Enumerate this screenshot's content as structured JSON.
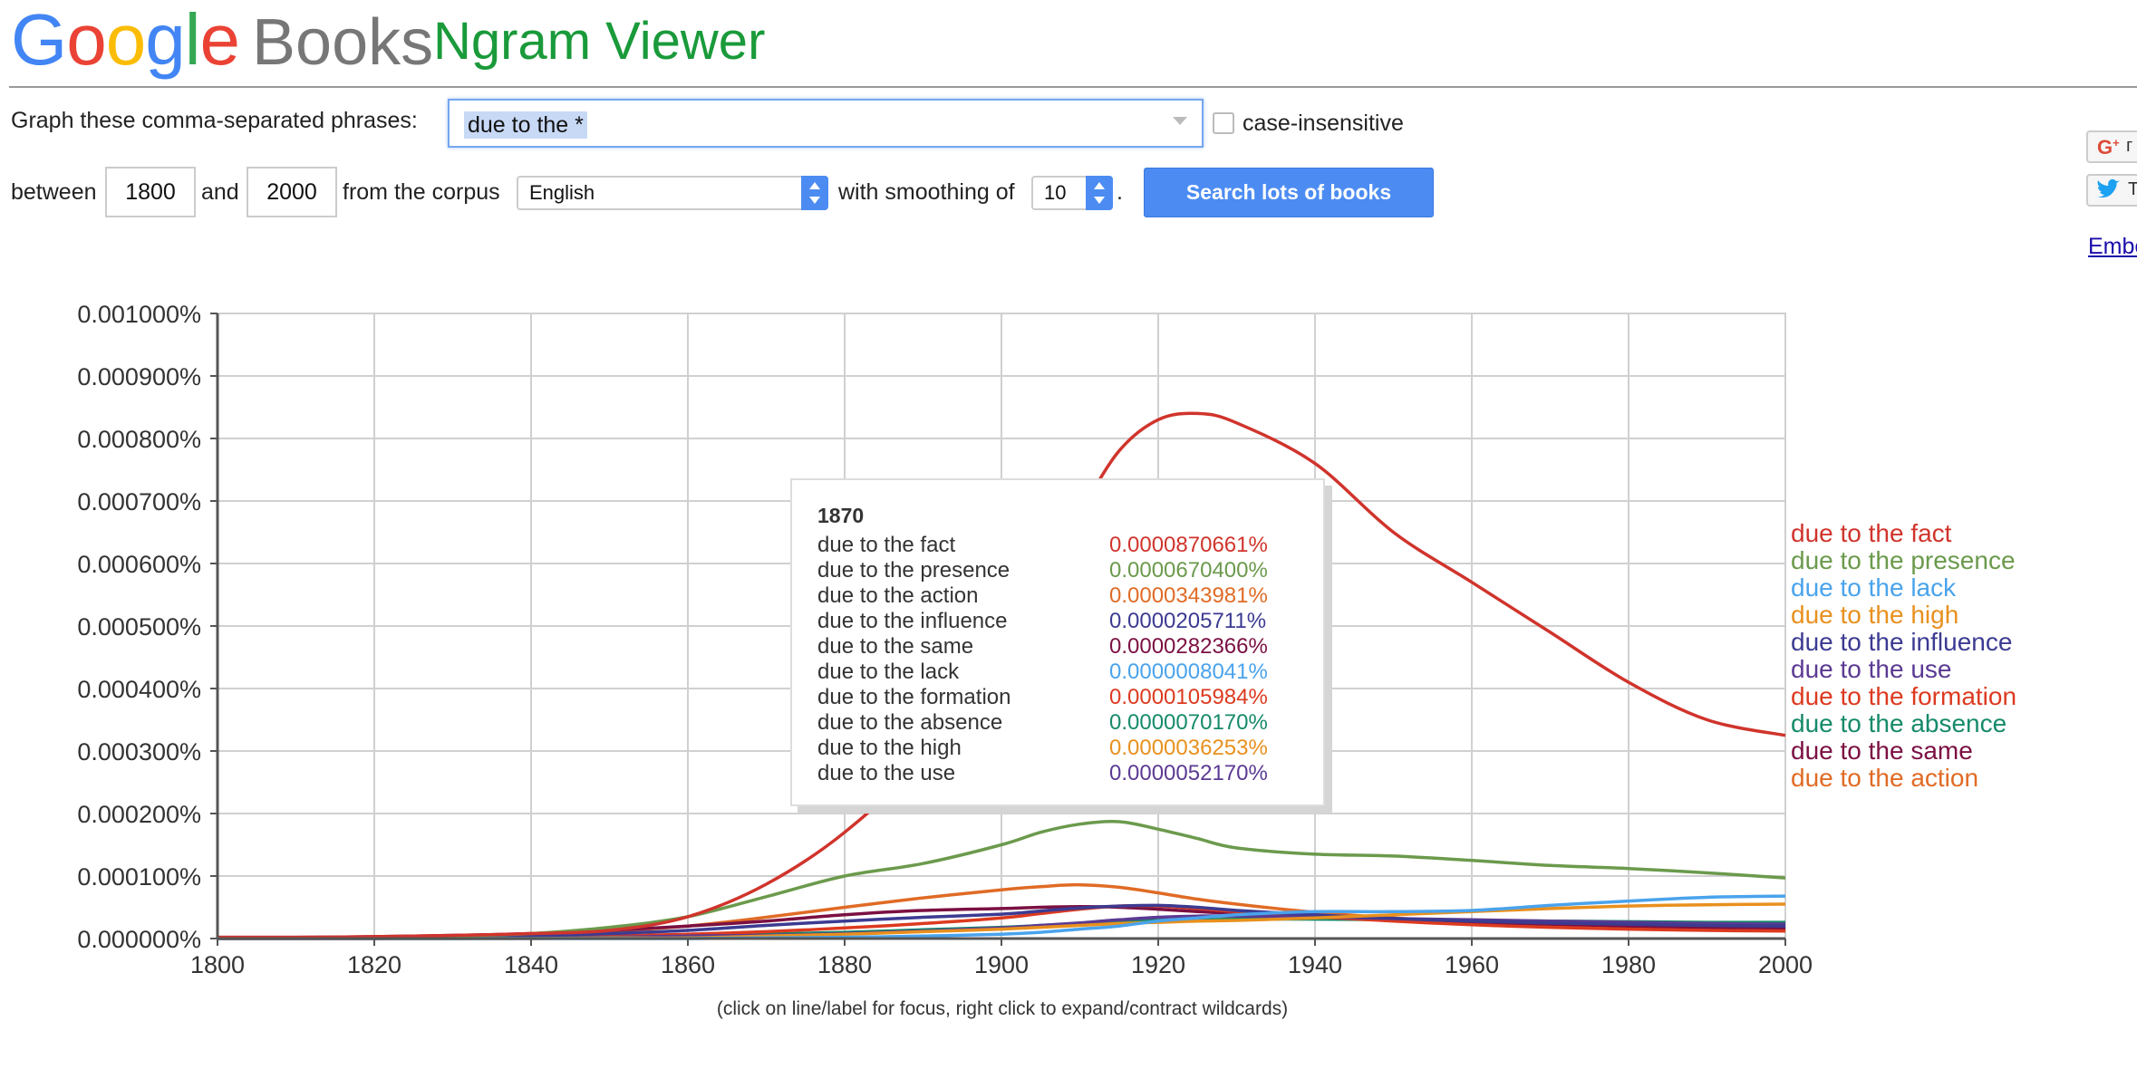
{
  "header": {
    "logo_letters": [
      "G",
      "o",
      "o",
      "g",
      "l",
      "e"
    ],
    "logo_books": "Books",
    "app_title": "Ngram Viewer"
  },
  "controls": {
    "phrase_label": "Graph these comma-separated phrases:",
    "phrase_value": "due to the *",
    "case_label": "case-insensitive",
    "between_label": "between",
    "start_year": "1800",
    "and_label": "and",
    "end_year": "2000",
    "corpus_label": "from the corpus",
    "corpus_value": "English",
    "smoothing_label": "with smoothing of",
    "smoothing_value": "10",
    "period": ".",
    "search_label": "Search lots of books"
  },
  "share": {
    "gplus_text": "г",
    "twitter_text": "T",
    "embed_text": "Embe"
  },
  "chart_note": "(click on line/label for focus, right click to expand/contract wildcards)",
  "tooltip": {
    "year": "1870",
    "rows": [
      {
        "name": "due to the fact",
        "value": "0.0000870661%",
        "color": "#d0342c"
      },
      {
        "name": "due to the presence",
        "value": "0.0000670400%",
        "color": "#6b9a4c"
      },
      {
        "name": "due to the action",
        "value": "0.0000343981%",
        "color": "#e06b25"
      },
      {
        "name": "due to the influence",
        "value": "0.0000205711%",
        "color": "#3c3b92"
      },
      {
        "name": "due to the same",
        "value": "0.0000282366%",
        "color": "#7b1042"
      },
      {
        "name": "due to the lack",
        "value": "0.0000008041%",
        "color": "#4aa3ec"
      },
      {
        "name": "due to the formation",
        "value": "0.0000105984%",
        "color": "#dc3a1f"
      },
      {
        "name": "due to the absence",
        "value": "0.0000070170%",
        "color": "#168a6a"
      },
      {
        "name": "due to the high",
        "value": "0.0000036253%",
        "color": "#e8901e"
      },
      {
        "name": "due to the use",
        "value": "0.0000052170%",
        "color": "#5b3a93"
      }
    ]
  },
  "chart_data": {
    "type": "line",
    "x_ticks": [
      1800,
      1820,
      1840,
      1860,
      1880,
      1900,
      1920,
      1940,
      1960,
      1980,
      2000
    ],
    "y_ticks": [
      "0.000000%",
      "0.000100%",
      "0.000200%",
      "0.000300%",
      "0.000400%",
      "0.000500%",
      "0.000600%",
      "0.000700%",
      "0.000800%",
      "0.000900%",
      "0.001000%"
    ],
    "xlim": [
      1800,
      2000
    ],
    "ylim": [
      0,
      0.001
    ],
    "grid": true,
    "legend": [
      "due to the fact",
      "due to the presence",
      "due to the lack",
      "due to the high",
      "due to the influence",
      "due to the use",
      "due to the formation",
      "due to the absence",
      "due to the same",
      "due to the action"
    ],
    "x": [
      1800,
      1810,
      1820,
      1830,
      1840,
      1850,
      1860,
      1870,
      1880,
      1890,
      1900,
      1905,
      1910,
      1915,
      1920,
      1925,
      1930,
      1940,
      1950,
      1960,
      1970,
      1980,
      1990,
      2000
    ],
    "series": [
      {
        "name": "due to the fact",
        "color": "#d0342c",
        "values": [
          2e-06,
          2e-06,
          3e-06,
          5e-06,
          8e-06,
          1.3e-05,
          3.5e-05,
          8.7e-05,
          0.00017,
          0.00029,
          0.00047,
          0.00057,
          0.00068,
          0.00078,
          0.00083,
          0.00084,
          0.000825,
          0.00076,
          0.00065,
          0.00057,
          0.00049,
          0.00041,
          0.00035,
          0.000325
        ]
      },
      {
        "name": "due to the presence",
        "color": "#6b9a4c",
        "values": [
          1e-06,
          1e-06,
          2e-06,
          4e-06,
          8e-06,
          1.8e-05,
          3.5e-05,
          6.7e-05,
          0.0001,
          0.00012,
          0.00015,
          0.00017,
          0.000183,
          0.000187,
          0.000175,
          0.00016,
          0.000145,
          0.000135,
          0.000132,
          0.000125,
          0.000117,
          0.000112,
          0.000105,
          9.7e-05
        ]
      },
      {
        "name": "due to the lack",
        "color": "#4aa3ec",
        "values": [
          0,
          0,
          0,
          0,
          0,
          0,
          0,
          1e-06,
          2e-06,
          4e-06,
          7e-06,
          1e-05,
          1.5e-05,
          2e-05,
          2.8e-05,
          3.3e-05,
          3.8e-05,
          4.3e-05,
          4.3e-05,
          4.5e-05,
          5.3e-05,
          6e-05,
          6.6e-05,
          6.8e-05
        ]
      },
      {
        "name": "due to the high",
        "color": "#e8901e",
        "values": [
          0,
          0,
          0,
          0,
          0,
          1e-06,
          1e-06,
          4e-06,
          7e-06,
          1.1e-05,
          1.5e-05,
          1.8e-05,
          2.1e-05,
          2.4e-05,
          2.6e-05,
          2.8e-05,
          2.9e-05,
          3.3e-05,
          3.8e-05,
          4.3e-05,
          4.8e-05,
          5.2e-05,
          5.4e-05,
          5.5e-05
        ]
      },
      {
        "name": "due to the influence",
        "color": "#3c3b92",
        "values": [
          1e-06,
          1e-06,
          1e-06,
          2e-06,
          4e-06,
          8e-06,
          1.3e-05,
          2.1e-05,
          2.8e-05,
          3.4e-05,
          3.9e-05,
          4.4e-05,
          4.9e-05,
          5.2e-05,
          5.3e-05,
          5e-05,
          4.5e-05,
          3.8e-05,
          3.2e-05,
          2.8e-05,
          2.5e-05,
          2.3e-05,
          2.1e-05,
          2e-05
        ]
      },
      {
        "name": "due to the use",
        "color": "#5b3a93",
        "values": [
          0,
          0,
          0,
          1e-06,
          1e-06,
          2e-06,
          4e-06,
          5e-06,
          8e-06,
          1.2e-05,
          1.7e-05,
          2.1e-05,
          2.5e-05,
          3e-05,
          3.4e-05,
          3.6e-05,
          3.6e-05,
          3.5e-05,
          3.2e-05,
          3e-05,
          2.8e-05,
          2.6e-05,
          2.4e-05,
          2.3e-05
        ]
      },
      {
        "name": "due to the formation",
        "color": "#dc3a1f",
        "values": [
          0,
          0,
          0,
          1e-06,
          2e-06,
          4e-06,
          7e-06,
          1.1e-05,
          1.7e-05,
          2.4e-05,
          3.3e-05,
          4e-05,
          4.7e-05,
          5.2e-05,
          5.2e-05,
          4.8e-05,
          4.3e-05,
          3.5e-05,
          2.8e-05,
          2.2e-05,
          1.8e-05,
          1.5e-05,
          1.3e-05,
          1.2e-05
        ]
      },
      {
        "name": "due to the absence",
        "color": "#168a6a",
        "values": [
          0,
          0,
          0,
          0,
          1e-06,
          2e-06,
          4e-06,
          7e-06,
          1e-05,
          1.4e-05,
          1.8e-05,
          2.1e-05,
          2.4e-05,
          2.7e-05,
          2.9e-05,
          3e-05,
          3.1e-05,
          3.1e-05,
          3e-05,
          2.9e-05,
          2.8e-05,
          2.7e-05,
          2.6e-05,
          2.6e-05
        ]
      },
      {
        "name": "due to the same",
        "color": "#7b1042",
        "values": [
          2e-06,
          2e-06,
          3e-06,
          5e-06,
          8e-06,
          1.3e-05,
          2e-05,
          2.8e-05,
          3.8e-05,
          4.5e-05,
          4.8e-05,
          5e-05,
          5.1e-05,
          5e-05,
          4.7e-05,
          4.3e-05,
          4e-05,
          3.5e-05,
          3e-05,
          2.6e-05,
          2.3e-05,
          2e-05,
          1.8e-05,
          1.7e-05
        ]
      },
      {
        "name": "due to the action",
        "color": "#e06b25",
        "values": [
          1e-06,
          1e-06,
          2e-06,
          3e-06,
          6e-06,
          1.2e-05,
          2e-05,
          3.4e-05,
          5e-05,
          6.5e-05,
          7.8e-05,
          8.3e-05,
          8.6e-05,
          8.2e-05,
          7.3e-05,
          6.3e-05,
          5.5e-05,
          4.2e-05,
          3.3e-05,
          2.6e-05,
          2.1e-05,
          1.8e-05,
          1.6e-05,
          1.5e-05
        ]
      }
    ]
  }
}
